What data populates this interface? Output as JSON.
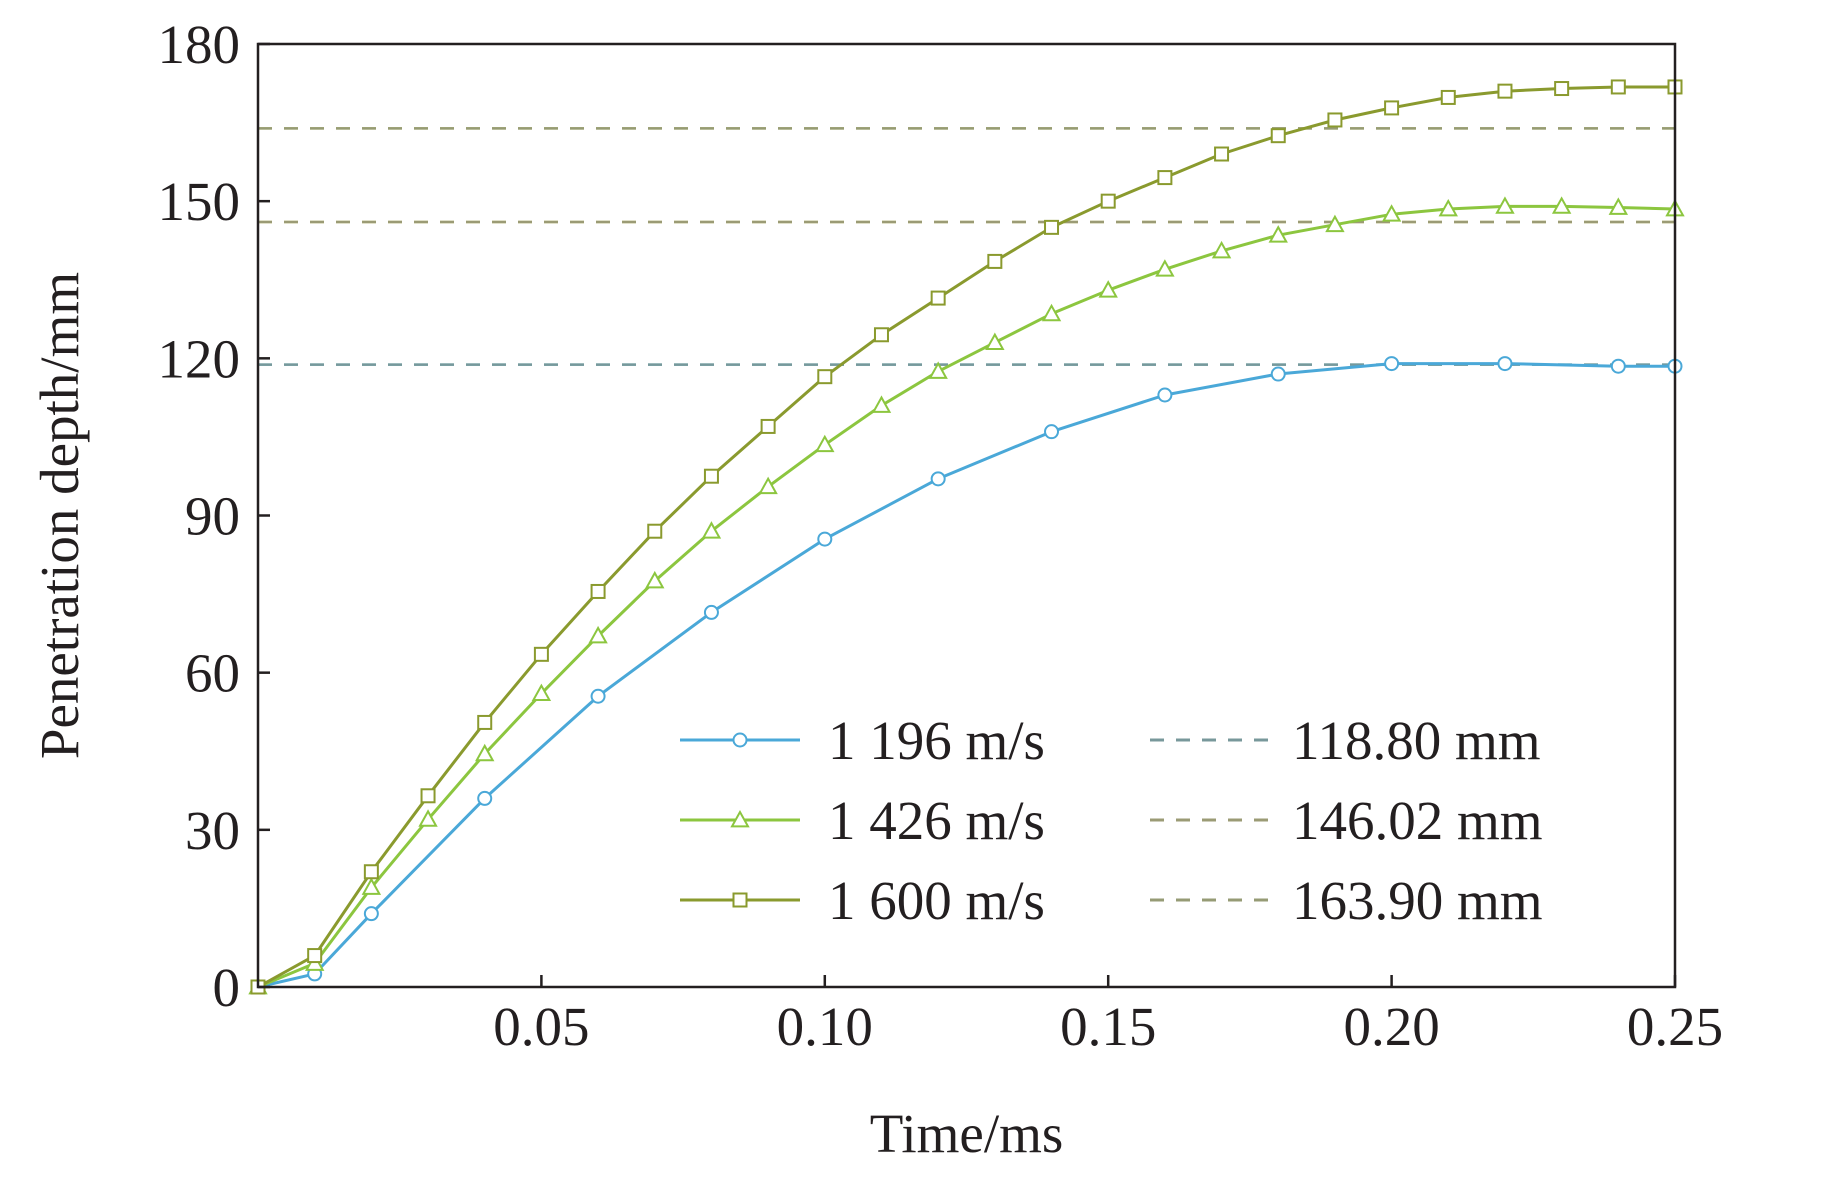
{
  "chart_data": {
    "type": "line",
    "xlabel": "Time/ms",
    "ylabel": "Penetration depth/mm",
    "xlim": [
      0,
      0.25
    ],
    "ylim": [
      0,
      180
    ],
    "xticks": [
      0.05,
      0.1,
      0.15,
      0.2,
      0.25
    ],
    "xtick_labels": [
      "0.05",
      "0.10",
      "0.15",
      "0.20",
      "0.25"
    ],
    "yticks": [
      0,
      30,
      60,
      90,
      120,
      150,
      180
    ],
    "ytick_labels": [
      "0",
      "30",
      "60",
      "90",
      "120",
      "150",
      "180"
    ],
    "grid": false,
    "legend_position": "bottom-right",
    "series": [
      {
        "name": "1 196 m/s",
        "color": "#4aa8d8",
        "marker": "circle",
        "x": [
          0,
          0.01,
          0.02,
          0.04,
          0.06,
          0.08,
          0.1,
          0.12,
          0.14,
          0.16,
          0.18,
          0.2,
          0.22,
          0.24,
          0.25
        ],
        "y": [
          0,
          2.5,
          14,
          36,
          55.5,
          71.5,
          85.5,
          97,
          106,
          113,
          117,
          119,
          119,
          118.5,
          118.5
        ]
      },
      {
        "name": "1 426 m/s",
        "color": "#8cc63f",
        "marker": "triangle",
        "x": [
          0,
          0.01,
          0.02,
          0.03,
          0.04,
          0.05,
          0.06,
          0.07,
          0.08,
          0.09,
          0.1,
          0.11,
          0.12,
          0.13,
          0.14,
          0.15,
          0.16,
          0.17,
          0.18,
          0.19,
          0.2,
          0.21,
          0.22,
          0.23,
          0.24,
          0.25
        ],
        "y": [
          0,
          4.5,
          19,
          32,
          44.5,
          56,
          67,
          77.5,
          87,
          95.5,
          103.5,
          111,
          117.5,
          123,
          128.5,
          133,
          137,
          140.5,
          143.5,
          145.5,
          147.5,
          148.5,
          149,
          149,
          148.8,
          148.5
        ]
      },
      {
        "name": "1 600 m/s",
        "color": "#8a9a2e",
        "marker": "square",
        "x": [
          0,
          0.01,
          0.02,
          0.03,
          0.04,
          0.05,
          0.06,
          0.07,
          0.08,
          0.09,
          0.1,
          0.11,
          0.12,
          0.13,
          0.14,
          0.15,
          0.16,
          0.17,
          0.18,
          0.19,
          0.2,
          0.21,
          0.22,
          0.23,
          0.24,
          0.25
        ],
        "y": [
          0,
          6,
          22,
          36.5,
          50.5,
          63.5,
          75.5,
          87,
          97.5,
          107,
          116.5,
          124.5,
          131.5,
          138.5,
          145,
          150,
          154.5,
          159,
          162.5,
          165.5,
          167.8,
          169.8,
          171,
          171.5,
          171.8,
          171.8
        ]
      }
    ],
    "reference_lines": [
      {
        "label": "118.80 mm",
        "value": 118.8,
        "color": "#3cbfc8"
      },
      {
        "label": "146.02 mm",
        "value": 146.02,
        "color": "#c8c832"
      },
      {
        "label": "163.90 mm",
        "value": 163.9,
        "color": "#b4c832"
      }
    ],
    "reference_dash_color": "#8c8c8c"
  }
}
